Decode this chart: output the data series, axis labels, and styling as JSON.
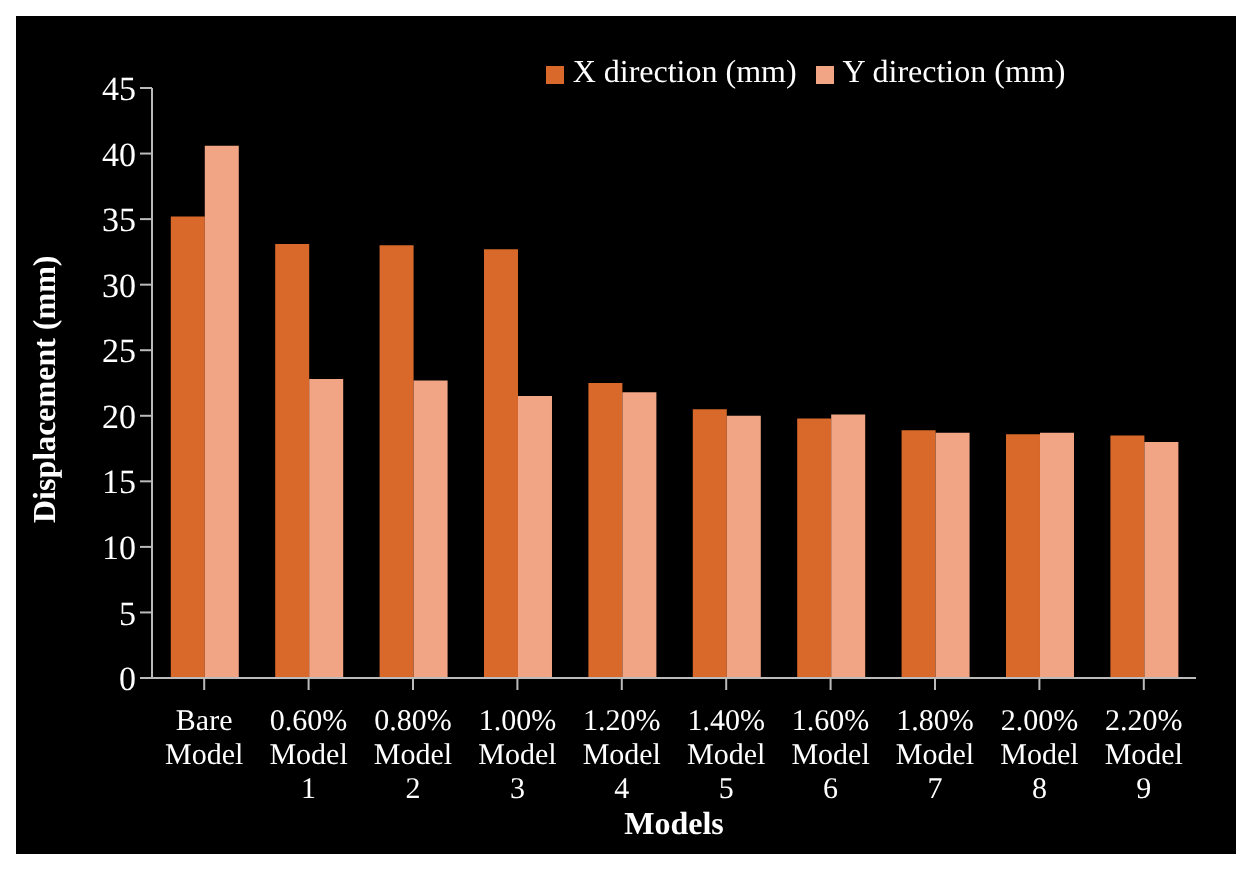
{
  "chart_data": {
    "type": "bar",
    "xlabel": "Models",
    "ylabel": "Displacement (mm)",
    "categories": [
      "Bare Model",
      "0.60% Model 1",
      "0.80% Model 2",
      "1.00% Model 3",
      "1.20% Model 4",
      "1.40% Model 5",
      "1.60% Model 6",
      "1.80% Model 7",
      "2.00% Model 8",
      "2.20% Model 9"
    ],
    "series": [
      {
        "name": "X direction (mm)",
        "color": "#d9692a",
        "values": [
          35.2,
          33.1,
          33.0,
          32.7,
          22.5,
          20.5,
          19.8,
          18.9,
          18.6,
          18.5
        ]
      },
      {
        "name": "Y direction (mm)",
        "color": "#f2a584",
        "values": [
          40.6,
          22.8,
          22.7,
          21.5,
          21.8,
          20.0,
          20.1,
          18.7,
          18.7,
          18.0
        ]
      }
    ],
    "ylim": [
      0,
      45
    ],
    "yticks": [
      0,
      5,
      10,
      15,
      20,
      25,
      30,
      35,
      40,
      45
    ],
    "grid": false,
    "legend": "top"
  }
}
